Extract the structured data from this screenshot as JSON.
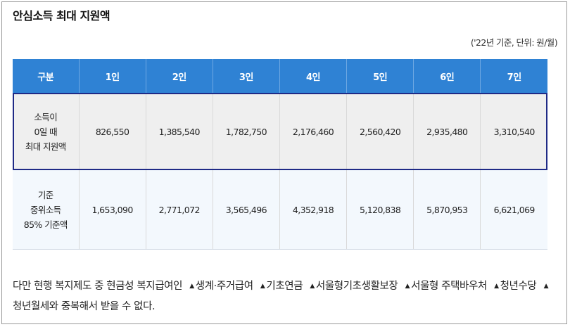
{
  "title": "안심소득 최대 지원액",
  "unit_note": "('22년 기준, 단위: 원/월)",
  "table": {
    "headers": [
      "구분",
      "1인",
      "2인",
      "3인",
      "4인",
      "5인",
      "6인",
      "7인"
    ],
    "rows": [
      {
        "label_lines": [
          "소득이",
          "0일 때",
          "최대 지원액"
        ],
        "values": [
          "826,550",
          "1,385,540",
          "1,782,750",
          "2,176,460",
          "2,560,420",
          "2,935,480",
          "3,310,540"
        ]
      },
      {
        "label_lines": [
          "기준",
          "중위소득",
          "85% 기준액"
        ],
        "values": [
          "1,653,090",
          "2,771,072",
          "3,565,496",
          "4,352,918",
          "5,120,838",
          "5,870,953",
          "6,621,069"
        ]
      }
    ]
  },
  "note": {
    "lead": "다만 현행 복지제도 중 현금성 복지급여인",
    "bullet_symbol": "▲",
    "items": [
      "생계·주거급여",
      "기초연금",
      "서울형기초생활보장",
      "서울형 주택바우처",
      "청년수당",
      "청년월세와"
    ],
    "tail": "중복해서 받을 수 없다."
  }
}
